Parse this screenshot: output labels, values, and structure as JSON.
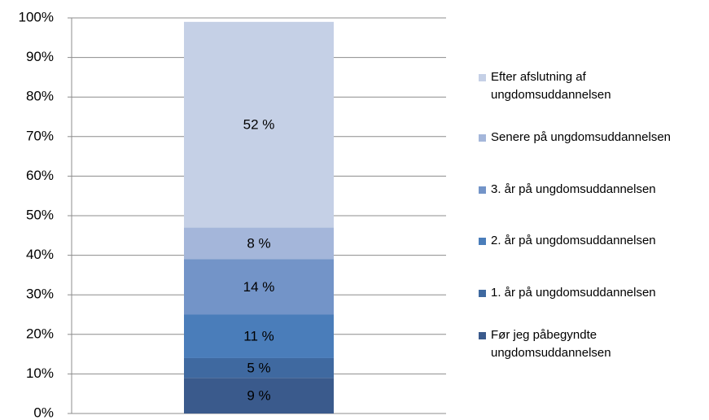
{
  "chart_data": {
    "type": "stacked_bar",
    "categories": [
      null
    ],
    "series": [
      {
        "name": "Før jeg påbegyndte ungdomsuddannelsen",
        "color": "#3a5a8c",
        "values": [
          9
        ],
        "value_labels": [
          "9 %"
        ]
      },
      {
        "name": "1. år på ungdomsuddannelsen",
        "color": "#3f69a0",
        "values": [
          5
        ],
        "value_labels": [
          "5 %"
        ]
      },
      {
        "name": "2. år på ungdomsuddannelsen",
        "color": "#4a7dba",
        "values": [
          11
        ],
        "value_labels": [
          "11 %"
        ]
      },
      {
        "name": "3. år på ungdomsuddannelsen",
        "color": "#7394c8",
        "values": [
          14
        ],
        "value_labels": [
          "14 %"
        ]
      },
      {
        "name": "Senere på ungdomsuddannelsen",
        "color": "#a4b6da",
        "values": [
          8
        ],
        "value_labels": [
          "8 %"
        ]
      },
      {
        "name": "Efter afslutning af ungdomsuddannelsen",
        "color": "#c5d0e6",
        "values": [
          52
        ],
        "value_labels": [
          "52 %"
        ]
      }
    ],
    "ylim": [
      0,
      100
    ],
    "yticks": [
      {
        "value": 0,
        "label": "0%"
      },
      {
        "value": 10,
        "label": "10%"
      },
      {
        "value": 20,
        "label": "20%"
      },
      {
        "value": 30,
        "label": "30%"
      },
      {
        "value": 40,
        "label": "40%"
      },
      {
        "value": 50,
        "label": "50%"
      },
      {
        "value": 60,
        "label": "60%"
      },
      {
        "value": 70,
        "label": "70%"
      },
      {
        "value": 80,
        "label": "80%"
      },
      {
        "value": 90,
        "label": "90%"
      },
      {
        "value": 100,
        "label": "100%"
      }
    ],
    "grid": true,
    "legend": "right"
  }
}
